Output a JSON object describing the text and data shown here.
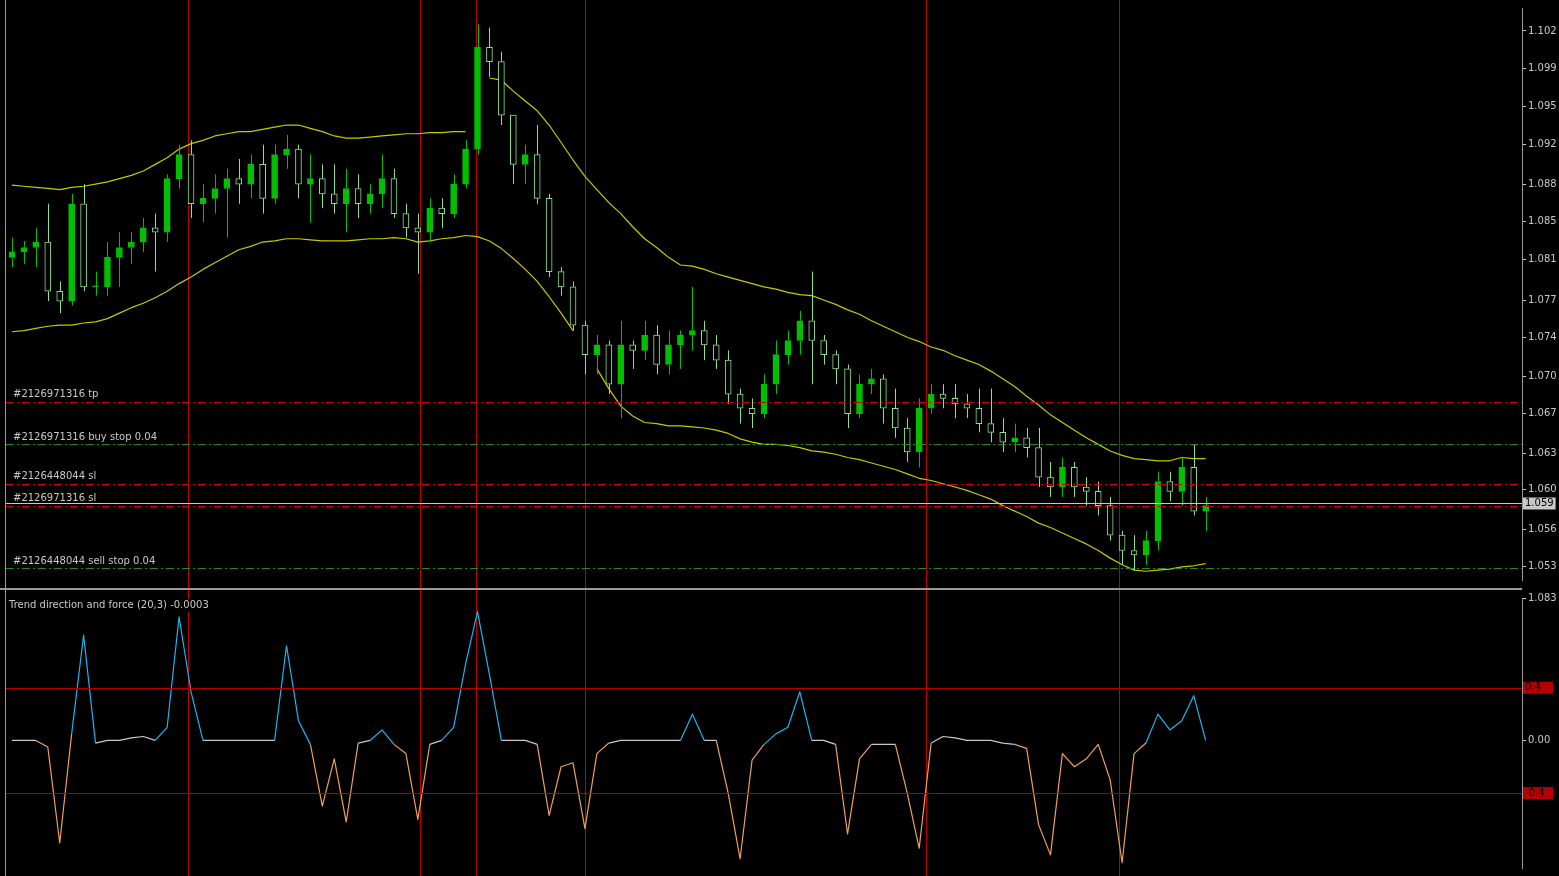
{
  "chart_data": [
    {
      "type": "candlestick",
      "colors": [
        "#00c000",
        "#00c000",
        "#00c000",
        "#8ee08e",
        "#8ee08e",
        "#00c000",
        "#8ee08e",
        "#00c000",
        "#00c000",
        "#00c000",
        "#00c000",
        "#00c000",
        "#8ee08e",
        "#00c000",
        "#00c000",
        "#8ee08e",
        "#00c000",
        "#00c000",
        "#00c000",
        "#8ee08e",
        "#00c000",
        "#8ee08e",
        "#00c000",
        "#00c000",
        "#8ee08e",
        "#00c000",
        "#8ee08e",
        "#8ee08e",
        "#00c000",
        "#8ee08e",
        "#00c000",
        "#00c000",
        "#8ee08e",
        "#8ee08e",
        "#8ee08e",
        "#00c000",
        "#8ee08e",
        "#00c000",
        "#00c000",
        "#00c000",
        "#8ee08e",
        "#8ee08e",
        "#8ee08e",
        "#00c000",
        "#8ee08e",
        "#8ee08e",
        "#8ee08e",
        "#8ee08e",
        "#8ee08e",
        "#00c000",
        "#8ee08e",
        "#00c000",
        "#8ee08e",
        "#00c000",
        "#8ee08e",
        "#00c000",
        "#00c000",
        "#00c000",
        "#8ee08e",
        "#8ee08e",
        "#8ee08e",
        "#8ee08e",
        "#8ee08e",
        "#00c000",
        "#00c000",
        "#00c000",
        "#00c000",
        "#8ee08e",
        "#8ee08e",
        "#8ee08e",
        "#8ee08e",
        "#00c000",
        "#00c000",
        "#8ee08e",
        "#8ee08e",
        "#8ee08e",
        "#00c000",
        "#00c000",
        "#8ee08e",
        "#8ee08e",
        "#8ee08e",
        "#8ee08e",
        "#8ee08e",
        "#8ee08e",
        "#00c000",
        "#8ee08e",
        "#8ee08e",
        "#8ee08e",
        "#00c000",
        "#8ee08e",
        "#8ee08e",
        "#8ee08e",
        "#8ee08e",
        "#8ee08e",
        "#8ee08e",
        "#00c000",
        "#00c000",
        "#8ee08e",
        "#00c000",
        "#8ee08e",
        "#00c000",
        null,
        null,
        null,
        null,
        null,
        null,
        null,
        null,
        null,
        null,
        null,
        null,
        null,
        null,
        null,
        null,
        null,
        null,
        null,
        null,
        null,
        null,
        null,
        null,
        null,
        null
      ],
      "tick_labels": "y",
      "legend": false,
      "grid": false,
      "categories": [
        null,
        null,
        null,
        null,
        null,
        null,
        null,
        null,
        null,
        null,
        null,
        null,
        null,
        null,
        null,
        null,
        null,
        null,
        null,
        null,
        null,
        null,
        null,
        null,
        null,
        null,
        null,
        null,
        null,
        null,
        null,
        null,
        null,
        null,
        null,
        null,
        null,
        null,
        null,
        null,
        null,
        null,
        null,
        null,
        null,
        null,
        null,
        null,
        null,
        null,
        null,
        null,
        null,
        null,
        null,
        null,
        null,
        null,
        null,
        null,
        null,
        null,
        null,
        null,
        null,
        null,
        null,
        null,
        null,
        null,
        null,
        null,
        null,
        null,
        null,
        null,
        null,
        null,
        null,
        null,
        null,
        null,
        null,
        null,
        null,
        null,
        null,
        null,
        null,
        null,
        null,
        null,
        null,
        null,
        null,
        null,
        null,
        null,
        null,
        null,
        null,
        null,
        null,
        null,
        null,
        null,
        null,
        null,
        null,
        null,
        null,
        null,
        null,
        null,
        null,
        null,
        null,
        null,
        null,
        null,
        null,
        null,
        null,
        null,
        null,
        null,
        null
      ],
      "ohlc": [
        [
          1.0813,
          1.0831,
          1.0804,
          1.0818
        ],
        [
          1.0818,
          1.0828,
          1.0807,
          1.0822
        ],
        [
          1.0822,
          1.084,
          1.0804,
          1.0827
        ],
        [
          1.0827,
          1.0862,
          1.0773,
          1.0782
        ],
        [
          1.0782,
          1.0791,
          1.0762,
          1.0773
        ],
        [
          1.0773,
          1.0871,
          1.0769,
          1.0862
        ],
        [
          1.0862,
          1.088,
          1.0782,
          1.0786
        ],
        [
          1.0786,
          1.08,
          1.0778,
          1.0786
        ],
        [
          1.0786,
          1.0827,
          1.0778,
          1.0813
        ],
        [
          1.0813,
          1.0836,
          1.0786,
          1.0822
        ],
        [
          1.0822,
          1.0836,
          1.0807,
          1.0827
        ],
        [
          1.0827,
          1.0849,
          1.0818,
          1.084
        ],
        [
          1.084,
          1.0853,
          1.08,
          1.0836
        ],
        [
          1.0836,
          1.0889,
          1.0827,
          1.0885
        ],
        [
          1.0885,
          1.0916,
          1.0876,
          1.0907
        ],
        [
          1.0907,
          1.092,
          1.0849,
          1.0862
        ],
        [
          1.0862,
          1.088,
          1.0845,
          1.0867
        ],
        [
          1.0867,
          1.0889,
          1.0853,
          1.0876
        ],
        [
          1.0876,
          1.0894,
          1.0831,
          1.0885
        ],
        [
          1.0885,
          1.0903,
          1.0862,
          1.088
        ],
        [
          1.088,
          1.0907,
          1.0867,
          1.0898
        ],
        [
          1.0898,
          1.0916,
          1.0853,
          1.0867
        ],
        [
          1.0867,
          1.0916,
          1.0862,
          1.0907
        ],
        [
          1.0907,
          1.0925,
          1.0894,
          1.0912
        ],
        [
          1.0912,
          1.0916,
          1.0867,
          1.088
        ],
        [
          1.088,
          1.0907,
          1.0845,
          1.0885
        ],
        [
          1.0885,
          1.0898,
          1.0858,
          1.0871
        ],
        [
          1.0871,
          1.0898,
          1.0853,
          1.0862
        ],
        [
          1.0862,
          1.0894,
          1.0836,
          1.0876
        ],
        [
          1.0876,
          1.0889,
          1.0849,
          1.0862
        ],
        [
          1.0862,
          1.088,
          1.0853,
          1.0871
        ],
        [
          1.0871,
          1.0907,
          1.0858,
          1.0885
        ],
        [
          1.0885,
          1.0894,
          1.0849,
          1.0853
        ],
        [
          1.0853,
          1.0862,
          1.0831,
          1.084
        ],
        [
          1.084,
          1.0853,
          1.0798,
          1.0836
        ],
        [
          1.0836,
          1.0867,
          1.0827,
          1.0858
        ],
        [
          1.0858,
          1.0867,
          1.084,
          1.0853
        ],
        [
          1.0853,
          1.0889,
          1.0849,
          1.088
        ],
        [
          1.088,
          1.092,
          1.0876,
          1.0912
        ],
        [
          1.0912,
          1.1026,
          1.0907,
          1.1005
        ],
        [
          1.1005,
          1.1023,
          1.0978,
          1.0992
        ],
        [
          1.0992,
          1.1001,
          1.0934,
          1.0943
        ],
        [
          1.0943,
          1.0943,
          1.088,
          1.0898
        ],
        [
          1.0898,
          1.0916,
          1.088,
          1.0907
        ],
        [
          1.0907,
          1.0934,
          1.0862,
          1.0867
        ],
        [
          1.0867,
          1.0871,
          1.0795,
          1.08
        ],
        [
          1.08,
          1.0804,
          1.0778,
          1.0786
        ],
        [
          1.0786,
          1.0791,
          1.0746,
          1.0751
        ],
        [
          1.0751,
          1.0755,
          1.0706,
          1.0724
        ],
        [
          1.0724,
          1.0742,
          1.0706,
          1.0733
        ],
        [
          1.0733,
          1.0737,
          1.0688,
          1.0697
        ],
        [
          1.0697,
          1.0755,
          1.0666,
          1.0733
        ],
        [
          1.0733,
          1.0737,
          1.0711,
          1.0728
        ],
        [
          1.0728,
          1.0755,
          1.0719,
          1.0742
        ],
        [
          1.0742,
          1.0751,
          1.0706,
          1.0715
        ],
        [
          1.0715,
          1.0746,
          1.0706,
          1.0733
        ],
        [
          1.0733,
          1.0746,
          1.0711,
          1.0742
        ],
        [
          1.0742,
          1.0786,
          1.0728,
          1.0746
        ],
        [
          1.0746,
          1.0755,
          1.0719,
          1.0733
        ],
        [
          1.0733,
          1.0742,
          1.0711,
          1.0719
        ],
        [
          1.0719,
          1.0728,
          1.0679,
          1.0688
        ],
        [
          1.0688,
          1.0693,
          1.0661,
          1.0675
        ],
        [
          1.0675,
          1.0684,
          1.0657,
          1.067
        ],
        [
          1.067,
          1.0706,
          1.0666,
          1.0697
        ],
        [
          1.0697,
          1.0737,
          1.0688,
          1.0724
        ],
        [
          1.0724,
          1.0746,
          1.0715,
          1.0737
        ],
        [
          1.0737,
          1.0764,
          1.0724,
          1.0755
        ],
        [
          1.0755,
          1.08,
          1.0697,
          1.0737
        ],
        [
          1.0737,
          1.0742,
          1.0715,
          1.0724
        ],
        [
          1.0724,
          1.0728,
          1.0697,
          1.0711
        ],
        [
          1.0711,
          1.0715,
          1.0657,
          1.067
        ],
        [
          1.067,
          1.0706,
          1.0666,
          1.0697
        ],
        [
          1.0697,
          1.0711,
          1.0688,
          1.0702
        ],
        [
          1.0702,
          1.0706,
          1.0661,
          1.0675
        ],
        [
          1.0675,
          1.0693,
          1.0648,
          1.0657
        ],
        [
          1.0657,
          1.0666,
          1.0626,
          1.0635
        ],
        [
          1.0635,
          1.0684,
          1.0621,
          1.0675
        ],
        [
          1.0675,
          1.0697,
          1.067,
          1.0688
        ],
        [
          1.0688,
          1.0697,
          1.0675,
          1.0684
        ],
        [
          1.0684,
          1.0697,
          1.0666,
          1.0679
        ],
        [
          1.0679,
          1.0688,
          1.0666,
          1.0675
        ],
        [
          1.0675,
          1.0693,
          1.0653,
          1.0661
        ],
        [
          1.0661,
          1.0693,
          1.0644,
          1.0653
        ],
        [
          1.0653,
          1.0666,
          1.0635,
          1.0644
        ],
        [
          1.0644,
          1.0661,
          1.0635,
          1.0648
        ],
        [
          1.0648,
          1.0657,
          1.063,
          1.0639
        ],
        [
          1.0639,
          1.0657,
          1.0603,
          1.0612
        ],
        [
          1.0612,
          1.0626,
          1.0594,
          1.0603
        ],
        [
          1.0603,
          1.063,
          1.0594,
          1.0621
        ],
        [
          1.0621,
          1.0626,
          1.0594,
          1.0603
        ],
        [
          1.0603,
          1.0612,
          1.0586,
          1.0599
        ],
        [
          1.0599,
          1.0608,
          1.0577,
          1.0586
        ],
        [
          1.0586,
          1.0594,
          1.0554,
          1.0559
        ],
        [
          1.0559,
          1.0563,
          1.0532,
          1.0545
        ],
        [
          1.0545,
          1.0559,
          1.0527,
          1.0541
        ],
        [
          1.0541,
          1.0563,
          1.0532,
          1.0554
        ],
        [
          1.0554,
          1.0617,
          1.0545,
          1.0608
        ],
        [
          1.0608,
          1.0617,
          1.059,
          1.0599
        ],
        [
          1.0599,
          1.063,
          1.0586,
          1.0621
        ],
        [
          1.0621,
          1.0642,
          1.0577,
          1.0581
        ],
        [
          1.0581,
          1.0594,
          1.0563,
          1.0586
        ],
        null,
        null,
        null,
        null,
        null,
        null,
        null,
        null,
        null,
        null,
        null,
        null,
        null,
        null,
        null,
        null,
        null,
        null,
        null,
        null,
        null,
        null,
        null,
        null,
        null,
        null
      ],
      "series": [
        {
          "type": "line",
          "color": "#c8c800",
          "values": [
            1.0879,
            1.0878,
            1.0877,
            1.0876,
            1.0875,
            1.0877,
            1.0878,
            1.088,
            1.0882,
            1.0885,
            1.0888,
            1.0892,
            1.0898,
            1.0904,
            1.0912,
            1.0917,
            1.092,
            1.0924,
            1.0926,
            1.0928,
            1.0928,
            1.093,
            1.0932,
            1.0934,
            1.0934,
            1.0931,
            1.0928,
            1.0924,
            1.0922,
            1.0922,
            1.0923,
            1.0924,
            1.0925,
            1.0926,
            1.0926,
            1.0927,
            1.0927,
            1.0928,
            1.0928,
            null,
            1.0977,
            1.0975,
            1.0965,
            1.0956,
            1.0947,
            1.0934,
            1.0918,
            1.0902,
            1.0887,
            1.0875,
            1.0863,
            1.0853,
            1.0841,
            1.083,
            1.0822,
            1.0813,
            1.0806,
            1.0805,
            1.0802,
            1.0798,
            1.0795,
            1.0792,
            1.0789,
            1.0786,
            1.0784,
            1.0781,
            1.0779,
            1.0778,
            1.0774,
            1.077,
            1.0765,
            1.0761,
            1.0755,
            1.075,
            1.0745,
            1.074,
            1.0736,
            1.0731,
            1.0728,
            1.0723,
            1.0719,
            1.0715,
            1.0709,
            1.0702,
            1.0695,
            1.0686,
            1.0678,
            1.0669,
            1.0662,
            1.0655,
            1.0648,
            1.0642,
            1.0636,
            1.0632,
            1.0629,
            1.0628,
            1.0627,
            1.0627,
            1.063,
            1.0629,
            1.0629,
            null,
            null,
            null,
            null,
            null,
            null,
            null,
            null,
            null,
            null,
            null,
            null,
            null,
            null,
            null,
            null,
            null,
            null,
            null,
            null,
            null,
            null,
            null,
            null,
            null,
            null
          ]
        },
        {
          "type": "line",
          "color": "#c8c800",
          "values": [
            1.0745,
            1.0746,
            1.0748,
            1.075,
            1.0751,
            1.0751,
            1.0753,
            1.0754,
            1.0757,
            1.0762,
            1.0767,
            1.0771,
            1.0776,
            1.0782,
            1.0789,
            1.0795,
            1.0802,
            1.0808,
            1.0814,
            1.082,
            1.0823,
            1.0827,
            1.0828,
            1.083,
            1.083,
            1.0829,
            1.0828,
            1.0828,
            1.0828,
            1.0829,
            1.083,
            1.083,
            1.0831,
            1.083,
            1.0827,
            1.0828,
            1.083,
            1.0831,
            1.0833,
            1.0832,
            1.0828,
            1.0821,
            1.0812,
            1.0802,
            1.0791,
            1.0777,
            1.0762,
            1.0746,
            null,
            1.0711,
            1.0693,
            1.0677,
            1.0668,
            1.0662,
            1.0661,
            1.0659,
            1.0659,
            1.0658,
            1.0657,
            1.0655,
            1.0652,
            1.0647,
            1.0644,
            1.0642,
            1.0642,
            1.0641,
            1.0639,
            1.0636,
            1.0635,
            1.0633,
            1.063,
            1.0628,
            1.0625,
            1.0622,
            1.0619,
            1.0615,
            1.0611,
            1.0609,
            1.0606,
            1.0603,
            1.06,
            1.0596,
            1.0592,
            1.0586,
            1.0581,
            1.0576,
            1.057,
            1.0566,
            1.0561,
            1.0556,
            1.0551,
            1.0545,
            1.0538,
            1.0532,
            1.0527,
            1.0526,
            1.0527,
            1.0528,
            1.053,
            1.0531,
            1.0533,
            null,
            null,
            null,
            null,
            null,
            null,
            null,
            null,
            null,
            null,
            null,
            null,
            null,
            null,
            null,
            null,
            null,
            null,
            null,
            null,
            null,
            null,
            null,
            null,
            null,
            null
          ]
        }
      ],
      "ylim": [
        1.0518,
        1.1041
      ],
      "yticks": [
        {
          "value": 1.053,
          "label": "1.053"
        },
        {
          "value": 1.0564,
          "label": "1.056"
        },
        {
          "value": 1.0601,
          "label": "1.060"
        },
        {
          "value": 1.0634,
          "label": "1.063"
        },
        {
          "value": 1.067,
          "label": "1.067"
        },
        {
          "value": 1.0704,
          "label": "1.070"
        },
        {
          "value": 1.074,
          "label": "1.074"
        },
        {
          "value": 1.0774,
          "label": "1.077"
        },
        {
          "value": 1.0811,
          "label": "1.081"
        },
        {
          "value": 1.0846,
          "label": "1.085"
        },
        {
          "value": 1.088,
          "label": "1.088"
        },
        {
          "value": 1.0916,
          "label": "1.092"
        },
        {
          "value": 1.0951,
          "label": "1.095"
        },
        {
          "value": 1.0986,
          "label": "1.099"
        },
        {
          "value": 1.102,
          "label": "1.102"
        }
      ],
      "ref_lines": [
        {
          "axis": "y",
          "value": 1.0681,
          "label": "#2126971316 tp",
          "color": "#c80000",
          "line_style": "dashed"
        },
        {
          "axis": "y",
          "value": 1.0642,
          "label": "#2126971316 buy stop 0.04",
          "color": "#1e8c1e",
          "line_style": "dashed"
        },
        {
          "axis": "y",
          "value": 1.0606,
          "label": "#2126448044 sl",
          "color": "#c80000",
          "line_style": "dashed"
        },
        {
          "axis": "y",
          "value": 1.0586,
          "label": "#2126971316 sl",
          "color": "#c80000",
          "line_style": "dashed"
        },
        {
          "axis": "y",
          "value": 1.0529,
          "label": "#2126448044 sell stop 0.04",
          "color": "#1e8c1e",
          "line_style": "dashed"
        },
        {
          "axis": "y",
          "value": 1.0588,
          "label": "1.059",
          "color": "#c8c8c8",
          "line_style": "solid"
        }
      ]
    },
    {
      "type": "line",
      "title": "Trend direction and force (20,3) -0.0003",
      "tick_labels": "y",
      "legend": false,
      "grid": false,
      "categories": [
        null,
        null,
        null,
        null,
        null,
        null,
        null,
        null,
        null,
        null,
        null,
        null,
        null,
        null,
        null,
        null,
        null,
        null,
        null,
        null,
        null,
        null,
        null,
        null,
        null,
        null,
        null,
        null,
        null,
        null,
        null,
        null,
        null,
        null,
        null,
        null,
        null,
        null,
        null,
        null,
        null,
        null,
        null,
        null,
        null,
        null,
        null,
        null,
        null,
        null,
        null,
        null,
        null,
        null,
        null,
        null,
        null,
        null,
        null,
        null,
        null,
        null,
        null,
        null,
        null,
        null,
        null,
        null,
        null,
        null,
        null,
        null,
        null,
        null,
        null,
        null,
        null,
        null,
        null,
        null,
        null,
        null,
        null,
        null,
        null,
        null,
        null,
        null,
        null,
        null,
        null,
        null,
        null,
        null,
        null,
        null,
        null,
        null,
        null,
        null,
        null,
        null,
        null,
        null,
        null,
        null,
        null,
        null,
        null,
        null,
        null,
        null,
        null,
        null,
        null,
        null,
        null,
        null,
        null,
        null,
        null,
        null,
        null,
        null,
        null,
        null,
        null
      ],
      "series": [
        {
          "type": "line",
          "color": "#c8c8c8",
          "values": [
            0,
            0,
            0,
            null,
            null,
            null,
            null,
            -0.02,
            0,
            0,
            0.02,
            0.03,
            0,
            null,
            null,
            null,
            0,
            0,
            0,
            0,
            0,
            0,
            0,
            null,
            null,
            null,
            null,
            null,
            null,
            -0.02,
            0,
            null,
            null,
            null,
            null,
            -0.03,
            0,
            null,
            null,
            null,
            null,
            0,
            0,
            0,
            -0.03,
            null,
            null,
            null,
            null,
            null,
            -0.02,
            0,
            0,
            0,
            0,
            0,
            0,
            null,
            0,
            0,
            null,
            null,
            null,
            null,
            null,
            null,
            null,
            0,
            0,
            -0.03,
            null,
            null,
            -0.03,
            -0.03,
            -0.03,
            null,
            null,
            -0.02,
            0.03,
            0.02,
            0,
            0,
            0,
            -0.02,
            -0.03,
            null,
            null,
            null,
            null,
            null,
            null,
            null,
            null,
            null,
            null,
            null,
            null,
            null,
            null,
            null,
            null,
            null,
            null,
            null,
            null,
            null,
            null,
            null,
            null,
            null,
            null,
            null,
            null,
            null,
            null,
            null,
            null,
            null,
            null,
            null,
            null,
            null,
            null,
            null,
            null,
            null,
            null
          ]
        },
        {
          "type": "line",
          "color": "#1eb4f0",
          "values": [
            null,
            null,
            null,
            null,
            null,
            0.05,
            0.8,
            -0.02,
            null,
            null,
            null,
            null,
            0,
            0.1,
            0.94,
            0.37,
            0,
            null,
            null,
            null,
            null,
            null,
            0,
            0.72,
            0.15,
            -0.03,
            null,
            null,
            null,
            null,
            0,
            0.08,
            -0.03,
            null,
            null,
            null,
            0,
            0.1,
            0.58,
            0.98,
            0.5,
            0,
            null,
            null,
            null,
            null,
            null,
            null,
            null,
            null,
            null,
            null,
            null,
            null,
            null,
            null,
            0,
            0.2,
            0,
            null,
            null,
            null,
            null,
            -0.03,
            0.05,
            0.1,
            0.37,
            0,
            null,
            null,
            null,
            null,
            null,
            null,
            null,
            null,
            null,
            null,
            null,
            null,
            null,
            null,
            null,
            null,
            null,
            null,
            null,
            null,
            null,
            null,
            null,
            null,
            null,
            null,
            null,
            -0.02,
            0.2,
            0.08,
            0.15,
            0.34,
            0,
            null,
            null,
            null,
            null,
            null,
            null,
            null,
            null,
            null,
            null,
            null,
            null,
            null,
            null,
            null,
            null,
            null,
            null,
            null,
            null,
            null,
            null,
            null,
            null,
            null,
            null
          ]
        },
        {
          "type": "line",
          "color": "#f0a05a",
          "values": [
            null,
            null,
            0,
            -0.05,
            -0.78,
            0.05,
            null,
            null,
            null,
            null,
            null,
            null,
            null,
            null,
            null,
            null,
            null,
            null,
            null,
            null,
            null,
            null,
            null,
            null,
            null,
            -0.03,
            -0.5,
            -0.14,
            -0.62,
            -0.02,
            null,
            null,
            -0.03,
            -0.1,
            -0.6,
            -0.03,
            null,
            null,
            null,
            null,
            null,
            null,
            null,
            null,
            -0.03,
            -0.57,
            -0.2,
            -0.17,
            -0.67,
            -0.1,
            -0.02,
            null,
            null,
            null,
            null,
            null,
            null,
            null,
            null,
            0,
            -0.4,
            -0.9,
            -0.15,
            -0.03,
            null,
            null,
            null,
            null,
            null,
            -0.03,
            -0.71,
            -0.14,
            -0.03,
            null,
            -0.03,
            -0.4,
            -0.82,
            -0.02,
            null,
            null,
            null,
            null,
            null,
            null,
            -0.03,
            -0.06,
            -0.64,
            -0.87,
            -0.1,
            -0.2,
            -0.14,
            -0.03,
            -0.3,
            -0.93,
            -0.1,
            -0.02,
            null,
            null,
            null,
            null,
            null,
            null,
            null,
            null,
            null,
            null,
            null,
            null,
            null,
            null,
            null,
            null,
            null,
            null,
            null,
            null,
            null,
            null,
            null,
            null,
            null,
            null,
            null,
            null,
            null,
            null,
            null
          ]
        }
      ],
      "ylim": [
        -0.97,
        1.083
      ],
      "yticks": [
        1.083,
        {
          "value": 0,
          "label": "0.00"
        }
      ],
      "ref_lines": [
        {
          "axis": "y",
          "value": 0.4,
          "label": "0.4",
          "color": "#b40000",
          "line_style": "solid"
        },
        {
          "axis": "y",
          "value": -0.4,
          "label": "-0.4",
          "color": "#b40000",
          "line_style": "solid"
        }
      ]
    }
  ]
}
